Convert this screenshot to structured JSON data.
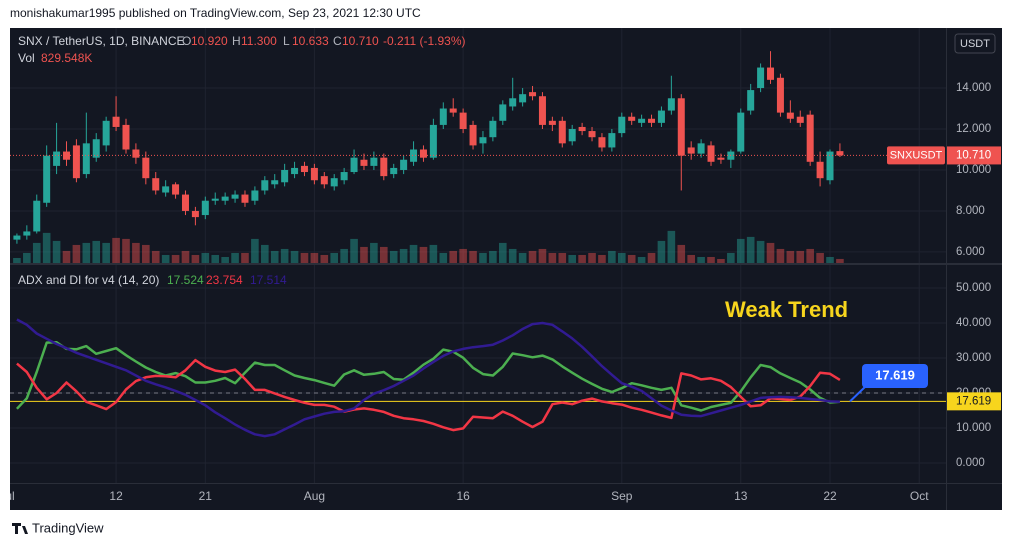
{
  "header": "monishakumar1995 published on TradingView.com, Sep 23, 2021 12:30 UTC",
  "footer": "TradingView",
  "currency": "USDT",
  "chart_data": [
    {
      "type": "candlestick",
      "title": "SNX / TetherUS, 1D, BINANCE",
      "ohlc_keys": [
        "O",
        "H",
        "L",
        "C"
      ],
      "legend_values": [
        "10.920",
        "11.300",
        "10.633",
        "10.710"
      ],
      "change": "-0.211 (-1.93%)",
      "x": [
        "2021-07-02",
        "2021-07-03",
        "2021-07-04",
        "2021-07-05",
        "2021-07-06",
        "2021-07-07",
        "2021-07-08",
        "2021-07-09",
        "2021-07-10",
        "2021-07-11",
        "2021-07-12",
        "2021-07-13",
        "2021-07-14",
        "2021-07-15",
        "2021-07-16",
        "2021-07-17",
        "2021-07-18",
        "2021-07-19",
        "2021-07-20",
        "2021-07-21",
        "2021-07-22",
        "2021-07-23",
        "2021-07-24",
        "2021-07-25",
        "2021-07-26",
        "2021-07-27",
        "2021-07-28",
        "2021-07-29",
        "2021-07-30",
        "2021-07-31",
        "2021-08-01",
        "2021-08-02",
        "2021-08-03",
        "2021-08-04",
        "2021-08-05",
        "2021-08-06",
        "2021-08-07",
        "2021-08-08",
        "2021-08-09",
        "2021-08-10",
        "2021-08-11",
        "2021-08-12",
        "2021-08-13",
        "2021-08-14",
        "2021-08-15",
        "2021-08-16",
        "2021-08-17",
        "2021-08-18",
        "2021-08-19",
        "2021-08-20",
        "2021-08-21",
        "2021-08-22",
        "2021-08-23",
        "2021-08-24",
        "2021-08-25",
        "2021-08-26",
        "2021-08-27",
        "2021-08-28",
        "2021-08-29",
        "2021-08-30",
        "2021-08-31",
        "2021-09-01",
        "2021-09-02",
        "2021-09-03",
        "2021-09-04",
        "2021-09-05",
        "2021-09-06",
        "2021-09-07",
        "2021-09-08",
        "2021-09-09",
        "2021-09-10",
        "2021-09-11",
        "2021-09-12",
        "2021-09-13",
        "2021-09-14",
        "2021-09-15",
        "2021-09-16",
        "2021-09-17",
        "2021-09-18",
        "2021-09-19",
        "2021-09-20",
        "2021-09-21",
        "2021-09-22",
        "2021-09-23"
      ],
      "open": [
        6.6,
        6.8,
        7.0,
        8.4,
        10.2,
        10.9,
        11.2,
        9.8,
        10.6,
        11.2,
        12.6,
        12.2,
        11.0,
        10.6,
        9.6,
        8.9,
        9.3,
        8.8,
        8.0,
        7.8,
        8.5,
        8.5,
        8.6,
        8.8,
        8.5,
        9.0,
        9.3,
        9.4,
        9.8,
        10.2,
        10.1,
        9.7,
        9.2,
        9.5,
        9.9,
        10.5,
        10.2,
        10.6,
        9.8,
        10.0,
        10.4,
        11.0,
        10.6,
        12.2,
        13.0,
        12.8,
        12.2,
        11.3,
        11.6,
        12.4,
        13.1,
        13.3,
        13.8,
        13.6,
        12.4,
        12.4,
        11.4,
        12.1,
        11.9,
        11.6,
        11.1,
        11.8,
        12.6,
        12.3,
        12.5,
        12.3,
        12.9,
        13.5,
        11.1,
        10.8,
        11.2,
        10.6,
        10.5,
        10.9,
        12.9,
        14.0,
        15.0,
        14.5,
        12.8,
        12.6,
        12.7,
        10.4,
        9.5,
        10.92
      ],
      "high": [
        6.9,
        7.3,
        8.8,
        11.2,
        12.3,
        11.4,
        11.5,
        12.8,
        11.8,
        12.6,
        13.6,
        12.5,
        11.3,
        10.9,
        9.9,
        9.5,
        9.4,
        9.0,
        8.2,
        8.7,
        8.9,
        8.9,
        9.0,
        9.0,
        9.2,
        9.7,
        9.8,
        10.3,
        10.4,
        10.4,
        10.3,
        9.9,
        9.8,
        10.1,
        11.0,
        10.8,
        10.9,
        10.8,
        10.3,
        10.7,
        11.4,
        11.2,
        12.5,
        13.3,
        13.5,
        13.0,
        12.4,
        11.9,
        12.6,
        13.4,
        14.5,
        14.0,
        14.1,
        13.8,
        12.6,
        12.6,
        12.2,
        12.3,
        12.1,
        11.8,
        12.0,
        12.8,
        12.8,
        12.7,
        12.7,
        13.1,
        14.6,
        13.7,
        11.4,
        11.5,
        11.4,
        10.8,
        11.0,
        13.0,
        14.2,
        15.2,
        15.8,
        14.7,
        13.4,
        12.9,
        12.9,
        10.9,
        11.0,
        11.3
      ],
      "low": [
        6.4,
        6.6,
        6.9,
        8.2,
        9.8,
        10.2,
        9.4,
        9.6,
        10.4,
        10.9,
        11.9,
        10.8,
        10.3,
        9.3,
        8.8,
        8.7,
        8.6,
        7.8,
        7.3,
        7.6,
        8.3,
        8.3,
        8.4,
        8.2,
        8.3,
        8.8,
        9.1,
        9.2,
        9.6,
        9.7,
        9.3,
        9.1,
        9.0,
        9.3,
        9.8,
        10.0,
        10.0,
        9.5,
        9.6,
        9.8,
        10.2,
        10.4,
        10.5,
        12.0,
        12.6,
        11.8,
        11.0,
        10.8,
        11.4,
        12.2,
        12.9,
        13.1,
        13.4,
        12.0,
        11.9,
        11.1,
        11.2,
        11.7,
        11.4,
        10.9,
        10.9,
        11.6,
        12.2,
        12.1,
        12.1,
        12.1,
        12.7,
        9.0,
        10.5,
        10.6,
        10.2,
        10.3,
        10.1,
        10.8,
        12.7,
        13.8,
        14.2,
        12.6,
        12.3,
        12.1,
        10.2,
        9.2,
        9.3,
        10.633
      ],
      "close": [
        6.8,
        7.0,
        8.5,
        10.7,
        10.9,
        10.5,
        9.6,
        11.3,
        11.5,
        12.4,
        12.1,
        11.0,
        10.6,
        9.6,
        9.0,
        9.2,
        8.8,
        8.0,
        7.7,
        8.5,
        8.6,
        8.7,
        8.8,
        8.4,
        9.0,
        9.5,
        9.5,
        10.0,
        10.1,
        9.9,
        9.5,
        9.3,
        9.6,
        9.9,
        10.6,
        10.2,
        10.6,
        9.7,
        10.1,
        10.5,
        11.0,
        10.6,
        12.2,
        13.0,
        12.8,
        12.0,
        11.2,
        11.6,
        12.4,
        13.2,
        13.5,
        13.7,
        13.6,
        12.2,
        12.2,
        11.3,
        12.0,
        11.9,
        11.6,
        11.1,
        11.8,
        12.6,
        12.4,
        12.5,
        12.3,
        12.9,
        13.5,
        10.7,
        10.8,
        11.3,
        10.4,
        10.5,
        10.9,
        12.8,
        13.9,
        15.0,
        14.4,
        12.8,
        12.5,
        12.3,
        10.4,
        9.6,
        10.9,
        10.71
      ],
      "colors": {
        "up": "#26a69a",
        "down": "#ef5350"
      },
      "volume": {
        "name": "Vol",
        "value_label": "829.548K",
        "ylim": [
          0,
          48000
        ],
        "values": [
          1025,
          2050,
          4100,
          6150,
          4510,
          2460,
          3690,
          4100,
          4510,
          4100,
          5125,
          4920,
          4100,
          3690,
          2460,
          1640,
          1640,
          2460,
          1640,
          2050,
          1640,
          1230,
          2050,
          2050,
          4920,
          3690,
          2460,
          2870,
          2460,
          2050,
          2050,
          1640,
          2050,
          2870,
          4920,
          3280,
          4100,
          3280,
          2460,
          2870,
          3690,
          3280,
          3690,
          2050,
          2460,
          2870,
          2460,
          2050,
          2460,
          4100,
          2870,
          2050,
          2460,
          2870,
          2050,
          2050,
          1640,
          1640,
          2050,
          1640,
          2460,
          2050,
          1640,
          1230,
          2050,
          4510,
          6560,
          3690,
          1640,
          1230,
          1230,
          820,
          2050,
          4920,
          5330,
          4510,
          4100,
          2870,
          2460,
          2460,
          2870,
          2050,
          1230,
          829.548
        ]
      },
      "last_price": {
        "name": "SNXUSDT",
        "value": 10.71,
        "label": "10.710"
      },
      "ylim": [
        5.46,
        16.93
      ],
      "yticks": [
        {
          "value": 6,
          "label": "6.000"
        },
        {
          "value": 8,
          "label": "8.000"
        },
        {
          "value": 10,
          "label": "10.000"
        },
        {
          "value": 12,
          "label": "12.000"
        },
        {
          "value": 14,
          "label": "14.000"
        }
      ],
      "xlim": [
        "2021-07-01",
        "2021-10-04"
      ],
      "xticks": [
        {
          "value": "2021-07-01",
          "label": "Jul"
        },
        {
          "value": "2021-07-12",
          "label": "12"
        },
        {
          "value": "2021-07-21",
          "label": "21"
        },
        {
          "value": "2021-08-01",
          "label": "Aug"
        },
        {
          "value": "2021-08-16",
          "label": "16"
        },
        {
          "value": "2021-09-01",
          "label": "Sep"
        },
        {
          "value": "2021-09-13",
          "label": "13"
        },
        {
          "value": "2021-09-22",
          "label": "22"
        },
        {
          "value": "2021-10-01",
          "label": "Oct"
        }
      ],
      "grid": true
    },
    {
      "type": "line",
      "title": "ADX and DI for v4 (14, 20)",
      "series": [
        {
          "color": "#4caf50",
          "value_label": "17.524",
          "values": [
            15.5,
            18.5,
            26,
            34.4,
            34.5,
            32.6,
            32.5,
            33.4,
            31.2,
            32,
            32.8,
            30.8,
            29,
            27.3,
            26,
            25,
            25.7,
            24.8,
            23,
            23,
            23.5,
            24.3,
            22.8,
            25.8,
            28.7,
            28,
            28,
            26.5,
            25,
            24.3,
            23.7,
            22.9,
            22.1,
            25.3,
            26.5,
            25.2,
            25.5,
            26,
            24,
            23.8,
            25.8,
            28.1,
            29.8,
            32.4,
            31.8,
            30.1,
            27.2,
            25.4,
            25,
            27.5,
            31.3,
            30.8,
            30.2,
            30.7,
            29.6,
            27.6,
            25.8,
            24.1,
            22.6,
            21.2,
            20.3,
            21.4,
            22.8,
            22.2,
            21.5,
            20.9,
            21.5,
            16.5,
            15.8,
            15,
            16,
            16.6,
            17.2,
            20.5,
            24.5,
            28,
            27.4,
            25.6,
            24.3,
            23,
            21,
            18.6,
            17.3,
            17.524
          ]
        },
        {
          "color": "#f23645",
          "value_label": "23.754",
          "values": [
            28.4,
            26,
            21.5,
            18.2,
            20,
            23,
            20.5,
            17.5,
            16.5,
            15.4,
            17.4,
            21,
            23.4,
            24.5,
            24.9,
            24.8,
            24.5,
            26.5,
            29.4,
            27.5,
            26.4,
            26,
            26.7,
            24,
            20.9,
            20.9,
            19.9,
            18.9,
            18,
            17.2,
            16.6,
            16.6,
            16.1,
            14.7,
            15.3,
            15.6,
            15.2,
            14.6,
            13.5,
            12.8,
            12.5,
            12,
            11.2,
            10.2,
            9.4,
            9.9,
            13.2,
            13,
            12.8,
            14.7,
            13.5,
            11.8,
            10.3,
            11.8,
            16.8,
            17.3,
            16.8,
            17.8,
            18.4,
            17.6,
            17.1,
            16.7,
            15.8,
            15.2,
            14.4,
            13.6,
            12.9,
            25.6,
            25,
            23.9,
            24.2,
            23.5,
            21.7,
            18.9,
            16.2,
            16.5,
            18.5,
            18.3,
            18,
            19,
            22,
            25.8,
            25.5,
            23.754
          ]
        },
        {
          "color": "#311b92",
          "value_label": "17.514",
          "values": [
            41,
            39.5,
            37,
            35.5,
            34,
            32.8,
            31.5,
            30.5,
            29.5,
            28.5,
            27.5,
            26.5,
            25,
            23.5,
            22.5,
            21.6,
            20.6,
            19.5,
            18,
            16.5,
            14.5,
            12.8,
            11,
            9.5,
            8.2,
            7.7,
            8.2,
            9.6,
            11,
            12.5,
            13.3,
            14.1,
            14.6,
            14.8,
            15.6,
            18,
            19.8,
            20.8,
            22,
            23.5,
            25,
            27,
            28.9,
            30.6,
            31.9,
            32.6,
            33.1,
            33.4,
            33.8,
            35,
            36.5,
            38.3,
            39.7,
            40,
            39.5,
            37.6,
            35.6,
            33.2,
            30.5,
            27.7,
            25.2,
            22.8,
            21.8,
            20.6,
            18.5,
            16.4,
            15,
            13.8,
            13.5,
            13.4,
            14.2,
            15,
            15.8,
            16.6,
            17.6,
            18.6,
            18.8,
            18.9,
            18.8,
            18.6,
            18.3,
            18,
            17.6,
            17.514
          ]
        }
      ],
      "threshold": 20,
      "level": {
        "value": 17.619,
        "label": "17.619",
        "color": "#f7d51d"
      },
      "annotation": "Weak Trend",
      "ylim": [
        -5.71,
        56.57
      ],
      "yticks": [
        {
          "value": 0,
          "label": "0.000"
        },
        {
          "value": 10,
          "label": "10.000"
        },
        {
          "value": 20,
          "label": "20.000"
        },
        {
          "value": 30,
          "label": "30.000"
        },
        {
          "value": 40,
          "label": "40.000"
        },
        {
          "value": 50,
          "label": "50.000"
        }
      ],
      "grid": true
    }
  ]
}
